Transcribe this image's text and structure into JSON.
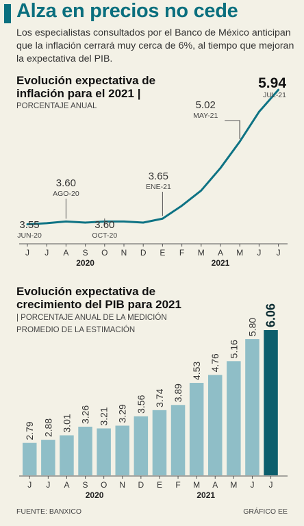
{
  "header": {
    "title": "Alza en precios no cede",
    "intro": "Los especialistas consultados por el Banco de México anticipan que la inflación cerrará muy cerca de 6%, al tiempo que mejoran la expectativa del PIB."
  },
  "chart_data": [
    {
      "type": "line",
      "title_line1": "Evolución expectativa de",
      "title_line2": "inflación para el 2021 |",
      "subtitle": "PORCENTAJE ANUAL",
      "x": [
        "J",
        "J",
        "A",
        "S",
        "O",
        "N",
        "D",
        "E",
        "F",
        "M",
        "A",
        "M",
        "J",
        "J"
      ],
      "year_labels": [
        "2020",
        "2021"
      ],
      "series": [
        {
          "values": [
            3.55,
            3.57,
            3.6,
            3.58,
            3.6,
            3.6,
            3.58,
            3.65,
            3.88,
            4.15,
            4.55,
            5.02,
            5.55,
            5.94
          ]
        }
      ],
      "ylim": [
        3.3,
        6.1
      ],
      "annotations": [
        {
          "index": 0,
          "value": "3.55",
          "label": "JUN-20",
          "position": "below"
        },
        {
          "index": 2,
          "value": "3.60",
          "label": "AGO-20",
          "position": "above"
        },
        {
          "index": 4,
          "value": "3.60",
          "label": "OCT-20",
          "position": "below"
        },
        {
          "index": 7,
          "value": "3.65",
          "label": "ENE-21",
          "position": "above"
        },
        {
          "index": 11,
          "value": "5.02",
          "label": "MAY-21",
          "position": "above"
        },
        {
          "index": 13,
          "value": "5.94",
          "label": "JUL-21",
          "position": "above",
          "highlight": true
        }
      ],
      "line_color": "#0e7384"
    },
    {
      "type": "bar",
      "title_line1": "Evolución expectativa de",
      "title_line2": "crecimiento del PIB para 2021",
      "subtitle_line1": "| PORCENTAJE ANUAL DE LA MEDICIÓN",
      "subtitle_line2": "PROMEDIO DE LA ESTIMACIÓN",
      "categories": [
        "J",
        "J",
        "A",
        "S",
        "O",
        "N",
        "D",
        "E",
        "F",
        "M",
        "A",
        "M",
        "J",
        "J"
      ],
      "year_labels": [
        "2020",
        "2021"
      ],
      "values": [
        2.79,
        2.88,
        3.01,
        3.26,
        3.21,
        3.29,
        3.56,
        3.74,
        3.89,
        4.53,
        4.76,
        5.16,
        5.8,
        6.06
      ],
      "value_labels": [
        "2.79",
        "2.88",
        "3.01",
        "3.26",
        "3.21",
        "3.29",
        "3.56",
        "3.74",
        "3.89",
        "4.53",
        "4.76",
        "5.16",
        "5.80",
        "6.06"
      ],
      "ylim": [
        1.85,
        6.06
      ],
      "bar_color": "#8fbec7",
      "highlight_color": "#0c5e6c",
      "highlight_index": 13
    }
  ],
  "footer": {
    "source": "FUENTE: BANXICO",
    "credit": "GRÁFICO EE"
  }
}
